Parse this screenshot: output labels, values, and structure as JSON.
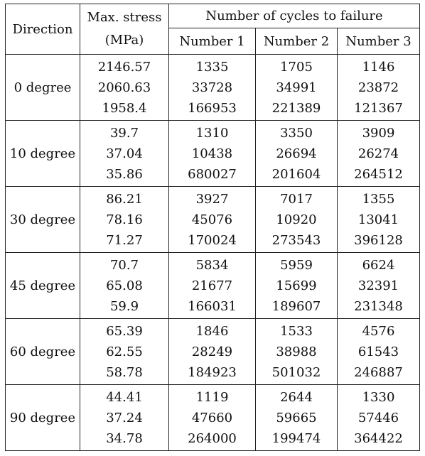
{
  "table": {
    "headers": {
      "direction": "Direction",
      "max_stress_line1": "Max. stress",
      "max_stress_line2": "(MPa)",
      "cycles_group": "Number of cycles to failure",
      "number1": "Number 1",
      "number2": "Number 2",
      "number3": "Number 3"
    },
    "rows": [
      {
        "direction": "0 degree",
        "max_stress": [
          "2146.57",
          "2060.63",
          "1958.4"
        ],
        "number1": [
          "1335",
          "33728",
          "166953"
        ],
        "number2": [
          "1705",
          "34991",
          "221389"
        ],
        "number3": [
          "1146",
          "23872",
          "121367"
        ]
      },
      {
        "direction": "10 degree",
        "max_stress": [
          "39.7",
          "37.04",
          "35.86"
        ],
        "number1": [
          "1310",
          "10438",
          "680027"
        ],
        "number2": [
          "3350",
          "26694",
          "201604"
        ],
        "number3": [
          "3909",
          "26274",
          "264512"
        ]
      },
      {
        "direction": "30 degree",
        "max_stress": [
          "86.21",
          "78.16",
          "71.27"
        ],
        "number1": [
          "3927",
          "45076",
          "170024"
        ],
        "number2": [
          "7017",
          "10920",
          "273543"
        ],
        "number3": [
          "1355",
          "13041",
          "396128"
        ]
      },
      {
        "direction": "45 degree",
        "max_stress": [
          "70.7",
          "65.08",
          "59.9"
        ],
        "number1": [
          "5834",
          "21677",
          "166031"
        ],
        "number2": [
          "5959",
          "15699",
          "189607"
        ],
        "number3": [
          "6624",
          "32391",
          "231348"
        ]
      },
      {
        "direction": "60 degree",
        "max_stress": [
          "65.39",
          "62.55",
          "58.78"
        ],
        "number1": [
          "1846",
          "28249",
          "184923"
        ],
        "number2": [
          "1533",
          "38988",
          "501032"
        ],
        "number3": [
          "4576",
          "61543",
          "246887"
        ]
      },
      {
        "direction": "90 degree",
        "max_stress": [
          "44.41",
          "37.24",
          "34.78"
        ],
        "number1": [
          "1119",
          "47660",
          "264000"
        ],
        "number2": [
          "2644",
          "59665",
          "199474"
        ],
        "number3": [
          "1330",
          "57446",
          "364422"
        ]
      }
    ]
  }
}
